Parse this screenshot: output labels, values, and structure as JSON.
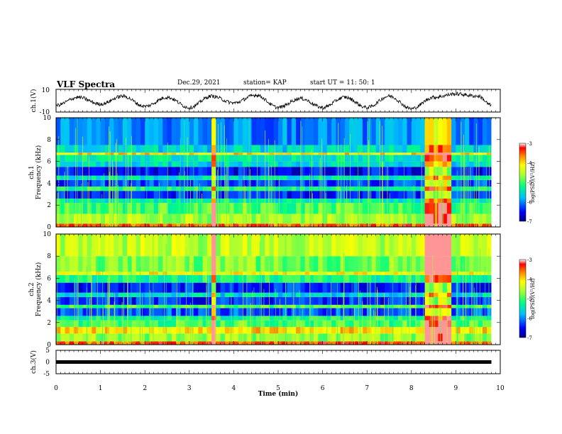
{
  "header": {
    "title": "VLF Spectra",
    "date": "Dec.29, 2021",
    "station": "station= KAP",
    "start_ut": "start  UT  =   11: 50: 1"
  },
  "chart_data": [
    {
      "type": "line",
      "panel": "ch1_waveform",
      "ylabel": "ch.1(V)",
      "ylim": [
        -10,
        10
      ],
      "xlim": [
        0,
        10
      ],
      "series": [
        {
          "values_description_only": false,
          "x": [
            0,
            0.5,
            1,
            1.5,
            2,
            2.5,
            3,
            3.5,
            4,
            4.5,
            5,
            5.5,
            6,
            6.5,
            7,
            7.5,
            8,
            8.5,
            9,
            9.5,
            9.8
          ],
          "y": [
            -4,
            3,
            -3,
            4,
            -5,
            3,
            -6,
            4,
            -2,
            5,
            -6,
            2,
            -6,
            3,
            -6,
            4,
            -7,
            3,
            6,
            4,
            -4
          ]
        }
      ],
      "color": "#000000"
    },
    {
      "type": "heatmap",
      "panel": "ch1_spectrogram",
      "ylabel": "Frequency (kHz)",
      "channel_label": "ch.1",
      "ylim": [
        0,
        10
      ],
      "yticks": [
        "0",
        "2",
        "4",
        "6",
        "8",
        "10"
      ],
      "xlim": [
        0,
        10
      ],
      "colorbar": {
        "label": "log(PSD)(V²/Hz)",
        "range": [
          -7,
          -3
        ],
        "ticks": [
          "-3",
          "-4",
          "-5",
          "-6",
          "-7"
        ]
      },
      "bands_khz": [
        [
          0,
          0.3,
          -3.5
        ],
        [
          0.3,
          1.2,
          -4.6
        ],
        [
          1.2,
          2.2,
          -5.0
        ],
        [
          2.2,
          2.6,
          -5.4
        ],
        [
          2.6,
          3.3,
          -6.4
        ],
        [
          3.3,
          3.7,
          -5.2
        ],
        [
          3.7,
          4.3,
          -6.3
        ],
        [
          4.3,
          4.7,
          -5.5
        ],
        [
          4.7,
          5.5,
          -6.5
        ],
        [
          5.5,
          6.0,
          -5.6
        ],
        [
          6.0,
          6.6,
          -5.4
        ],
        [
          6.6,
          6.8,
          -4.0
        ],
        [
          6.8,
          7.5,
          -5.6
        ],
        [
          7.5,
          10,
          -6.0
        ]
      ],
      "burst_intervals_min": [
        [
          3.55,
          3.62
        ],
        [
          8.3,
          8.95
        ]
      ]
    },
    {
      "type": "heatmap",
      "panel": "ch2_spectrogram",
      "ylabel": "Frequency (kHz)",
      "channel_label": "ch.2",
      "ylim": [
        0,
        10
      ],
      "yticks": [
        "0",
        "2",
        "4",
        "6",
        "8",
        "10"
      ],
      "xlim": [
        0,
        10
      ],
      "colorbar": {
        "label": "log(PSD)(V²/Hz)",
        "range": [
          -7,
          -3
        ],
        "ticks": [
          "-3",
          "-4",
          "-5",
          "-6",
          "-7"
        ]
      },
      "bands_khz": [
        [
          0,
          0.3,
          -3.5
        ],
        [
          0.3,
          1.0,
          -4.7
        ],
        [
          1.0,
          1.6,
          -4.0
        ],
        [
          1.6,
          2.2,
          -5.0
        ],
        [
          2.2,
          2.6,
          -5.2
        ],
        [
          2.6,
          3.3,
          -6.2
        ],
        [
          3.3,
          3.6,
          -5.0
        ],
        [
          3.6,
          4.3,
          -6.4
        ],
        [
          4.3,
          4.7,
          -5.6
        ],
        [
          4.7,
          5.6,
          -6.4
        ],
        [
          5.6,
          6.3,
          -5.2
        ],
        [
          6.3,
          6.6,
          -4.2
        ],
        [
          6.6,
          8.0,
          -4.8
        ],
        [
          8.0,
          10,
          -4.5
        ]
      ],
      "burst_intervals_min": [
        [
          3.55,
          3.62
        ],
        [
          8.3,
          8.95
        ]
      ]
    },
    {
      "type": "line",
      "panel": "ch3_waveform",
      "ylabel": "ch.3(V)",
      "ylim": [
        -5,
        5
      ],
      "yticks": [
        "5",
        "0",
        "-5"
      ],
      "xlim": [
        0,
        9.8
      ],
      "series": [
        {
          "x": [
            0,
            9.8
          ],
          "y": [
            0,
            0
          ]
        }
      ],
      "xlabel": "Time  (min)",
      "xticks": [
        "0",
        "1",
        "2",
        "3",
        "4",
        "5",
        "6",
        "7",
        "8",
        "9",
        "10"
      ]
    }
  ],
  "axes": {
    "ch1_ticks": [
      "10",
      "-10"
    ]
  }
}
